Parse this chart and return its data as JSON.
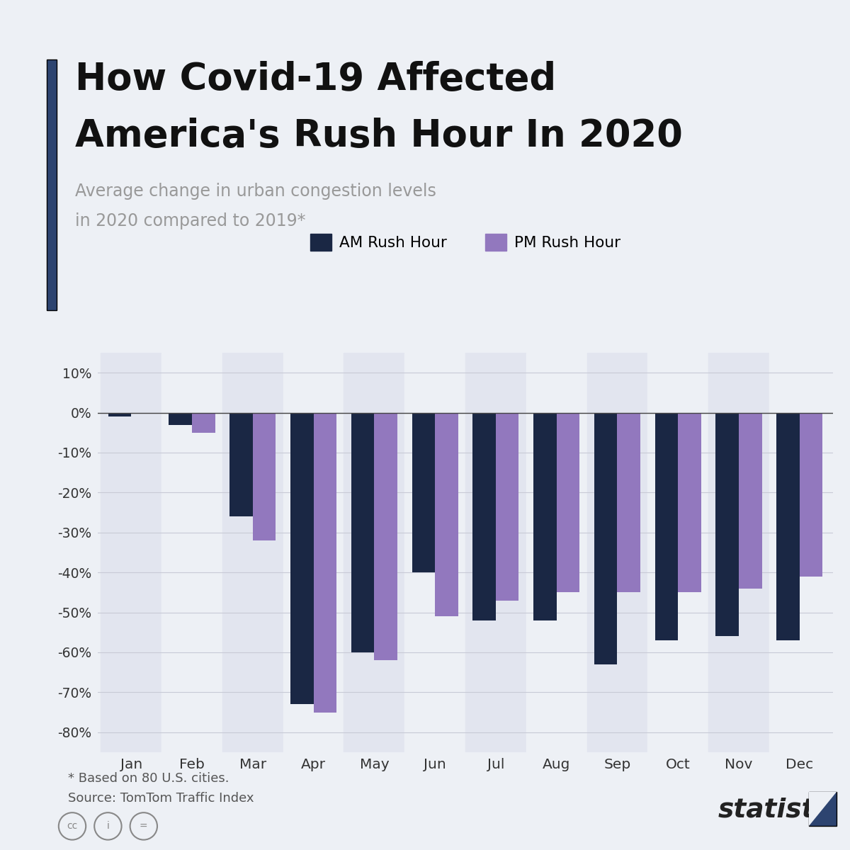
{
  "title_line1": "How Covid-19 Affected",
  "title_line2": "America's Rush Hour In 2020",
  "subtitle_line1": "Average change in urban congestion levels",
  "subtitle_line2": "in 2020 compared to 2019*",
  "months": [
    "Jan",
    "Feb",
    "Mar",
    "Apr",
    "May",
    "Jun",
    "Jul",
    "Aug",
    "Sep",
    "Oct",
    "Nov",
    "Dec"
  ],
  "am_values": [
    -1,
    -3,
    -26,
    -73,
    -60,
    -40,
    -52,
    -52,
    -63,
    -57,
    -56,
    -57
  ],
  "pm_values": [
    0,
    -5,
    -32,
    -75,
    -62,
    -51,
    -47,
    -45,
    -45,
    -45,
    -44,
    -41
  ],
  "am_color": "#1a2744",
  "pm_color": "#9278be",
  "bg_color": "#edf0f5",
  "bar_bg_even": "#e2e5ef",
  "bar_bg_odd": "#edf0f5",
  "grid_color": "#c8cad6",
  "ylim": [
    -85,
    15
  ],
  "yticks": [
    10,
    0,
    -10,
    -20,
    -30,
    -40,
    -50,
    -60,
    -70,
    -80
  ],
  "footnote_line1": "* Based on 80 U.S. cities.",
  "footnote_line2": "Source: TomTom Traffic Index",
  "accent_bar_color": "#2d4470",
  "title_color": "#111111",
  "subtitle_color": "#999999",
  "footnote_color": "#555555",
  "legend_label_am": "AM Rush Hour",
  "legend_label_pm": "PM Rush Hour"
}
